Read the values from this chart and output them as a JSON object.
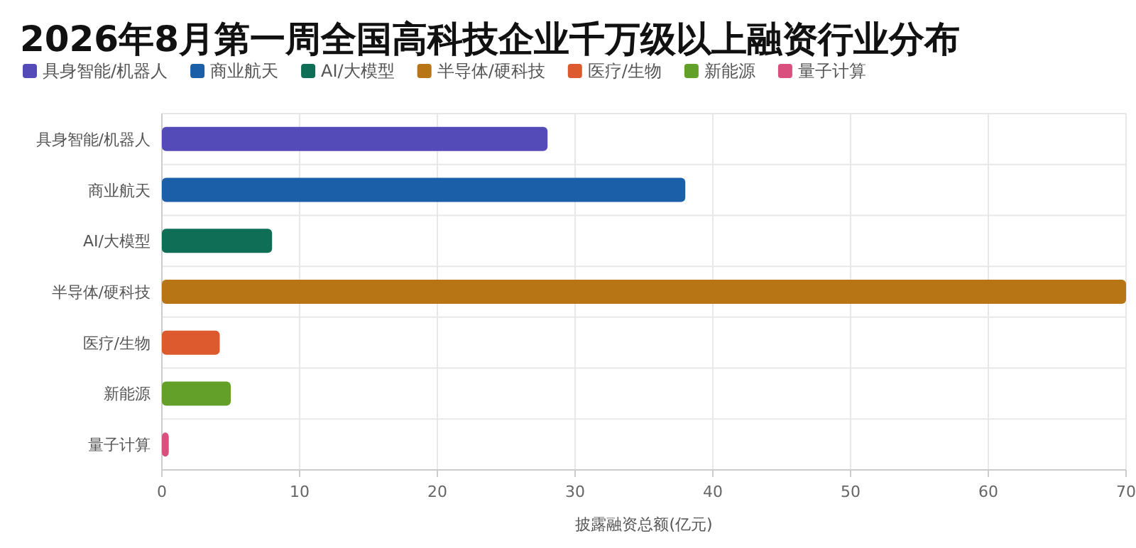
{
  "chart_data": {
    "type": "bar",
    "orientation": "horizontal",
    "title": "2026年8月第一周全国高科技企业千万级以上融资行业分布",
    "xlabel": "披露融资总额(亿元)",
    "categories": [
      "具身智能/机器人",
      "商业航天",
      "AI/大模型",
      "半导体/硬科技",
      "医疗/生物",
      "新能源",
      "量子计算"
    ],
    "series": [
      {
        "name": "具身智能/机器人",
        "color": "#554bb8",
        "values": [
          28,
          null,
          null,
          null,
          null,
          null,
          null
        ]
      },
      {
        "name": "商业航天",
        "color": "#1a5fa8",
        "values": [
          null,
          38,
          null,
          null,
          null,
          null,
          null
        ]
      },
      {
        "name": "AI/大模型",
        "color": "#0f6e56",
        "values": [
          null,
          null,
          8,
          null,
          null,
          null,
          null
        ]
      },
      {
        "name": "半导体/硬科技",
        "color": "#b87516",
        "values": [
          null,
          null,
          null,
          70,
          null,
          null,
          null
        ]
      },
      {
        "name": "医疗/生物",
        "color": "#dc5a2d",
        "values": [
          null,
          null,
          null,
          null,
          4.2,
          null,
          null
        ]
      },
      {
        "name": "新能源",
        "color": "#62a02a",
        "values": [
          null,
          null,
          null,
          null,
          null,
          5,
          null
        ]
      },
      {
        "name": "量子计算",
        "color": "#d9507f",
        "values": [
          null,
          null,
          null,
          null,
          null,
          null,
          0.5
        ]
      }
    ],
    "xlim": [
      0,
      70
    ],
    "xticks": [
      0,
      10,
      20,
      30,
      40,
      50,
      60,
      70
    ],
    "grid": true,
    "legend": "top left"
  }
}
